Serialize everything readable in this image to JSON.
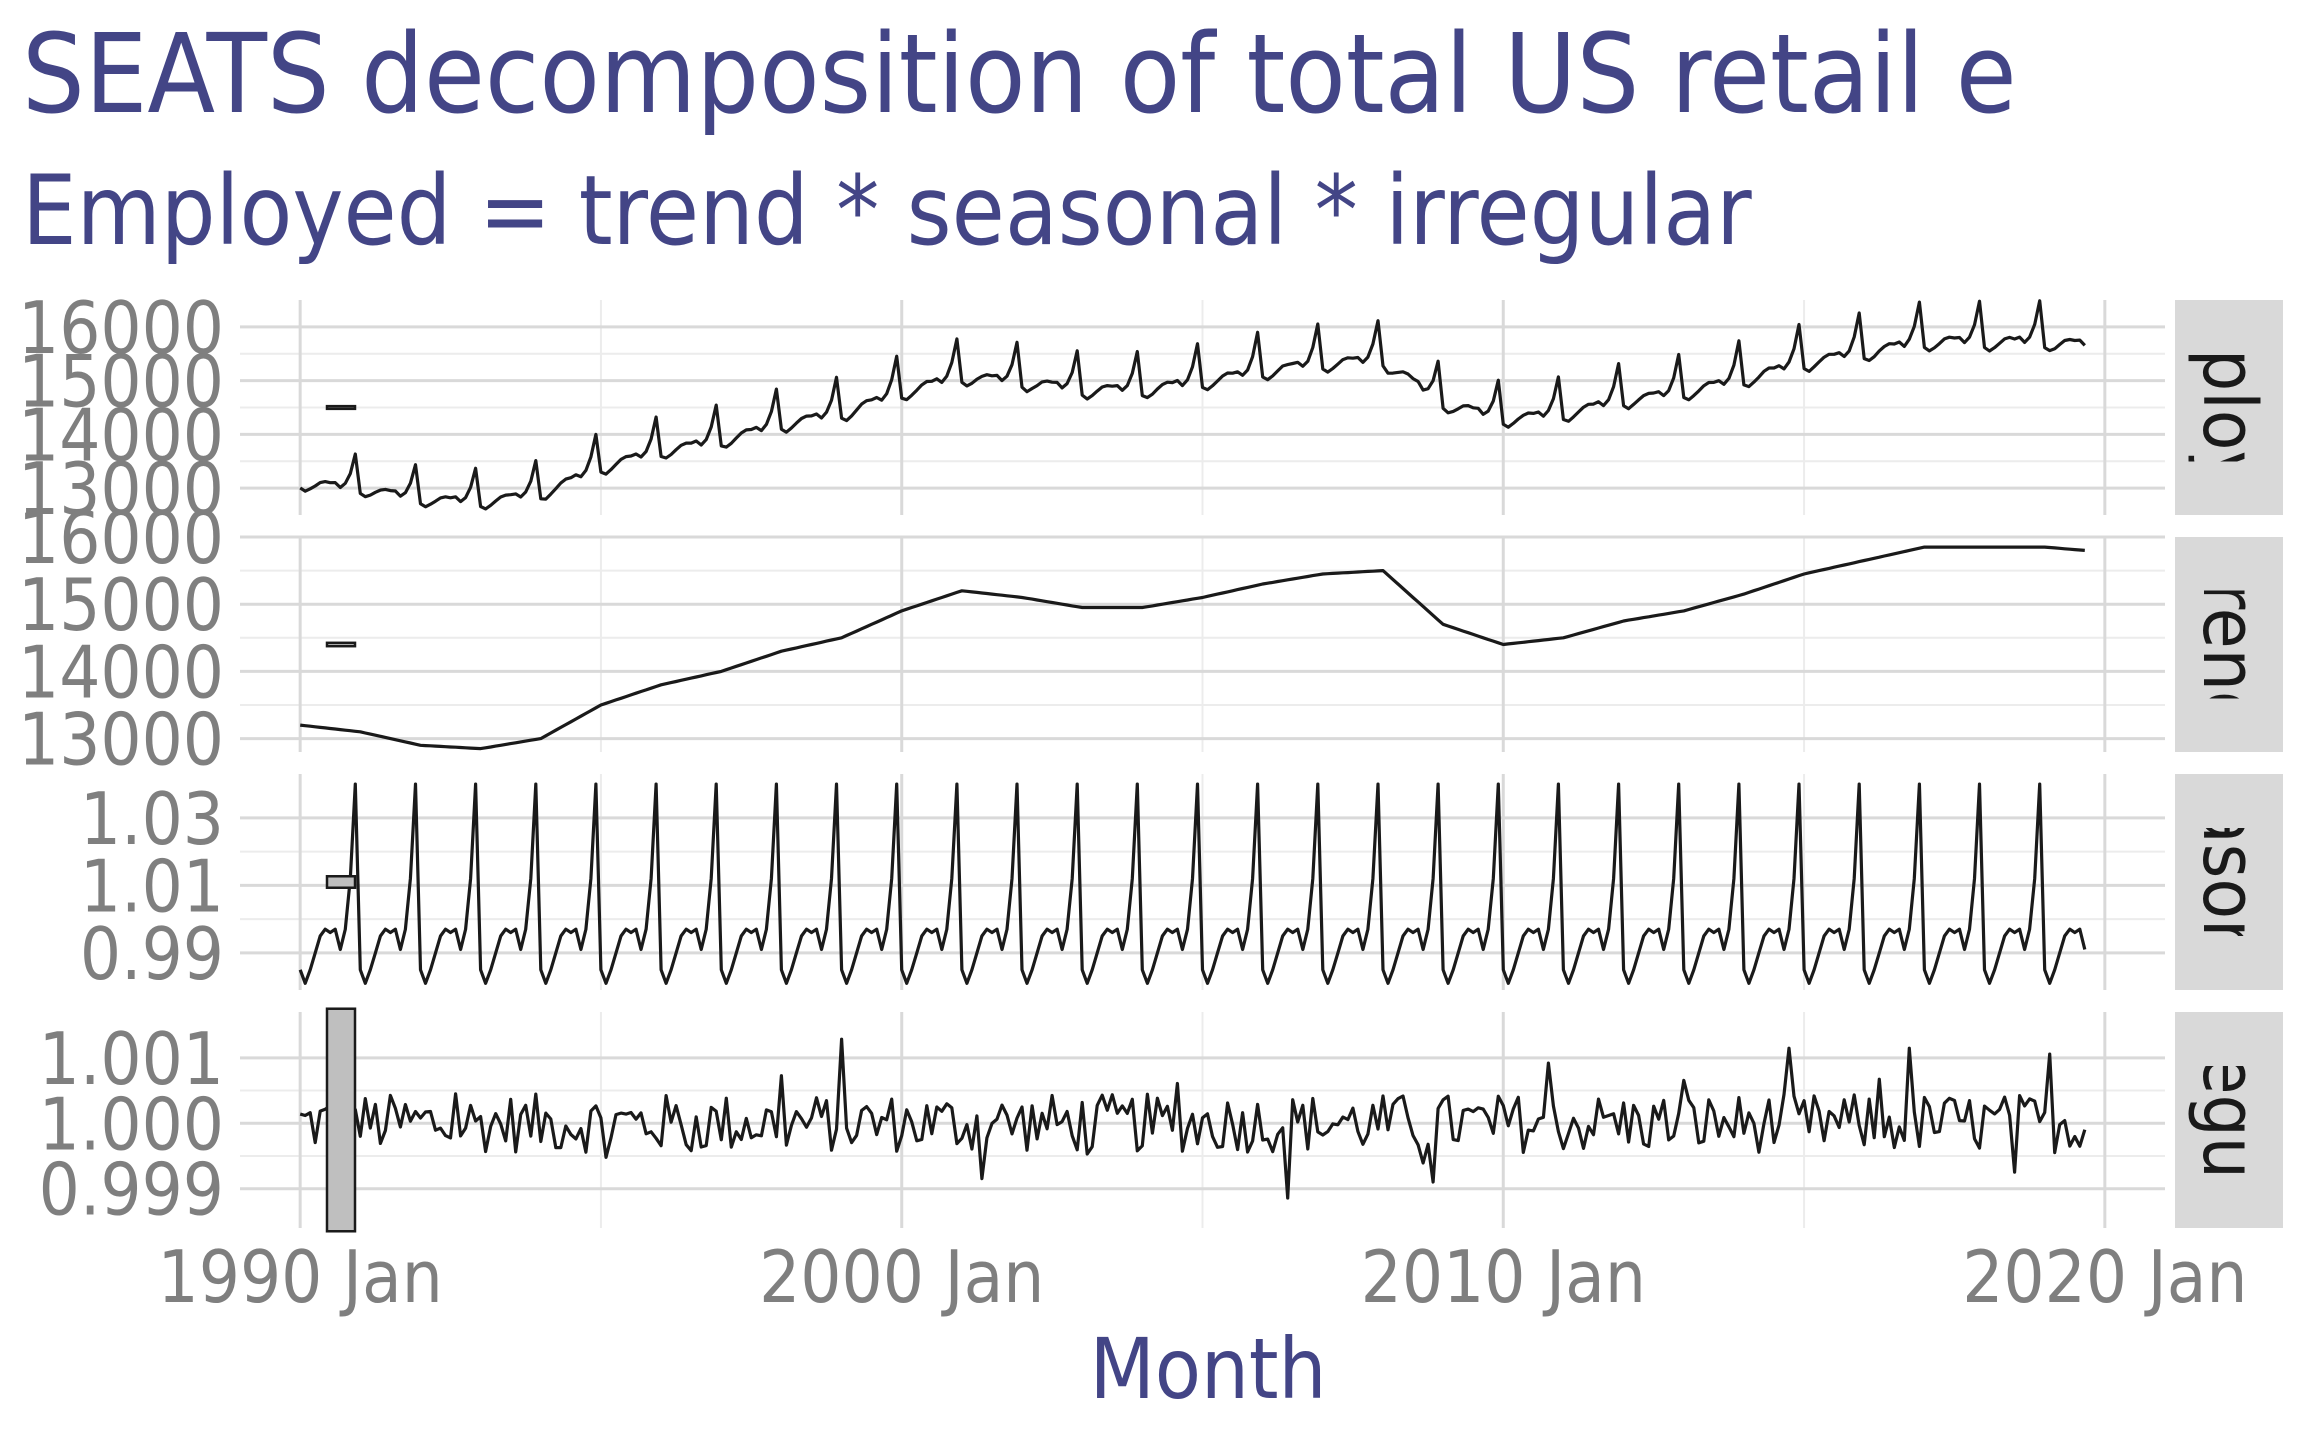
{
  "header": {
    "title": "SEATS decomposition of total US retail e",
    "subtitle": "Employed = trend * seasonal * irregular"
  },
  "colors": {
    "title": "#434586",
    "axis_text": "#7f7f7f",
    "line": "#1a1a1a",
    "grid_major": "#d9d9d9",
    "grid_minor": "#ececec",
    "strip_bg": "#d9d9d9",
    "scale_bar": "#bfbfbf"
  },
  "chart_data": {
    "type": "line",
    "xlabel": "Month",
    "x_range": [
      "1990-01",
      "2019-09"
    ],
    "x_ticks": [
      "1990 Jan",
      "2000 Jan",
      "2010 Jan",
      "2020 Jan"
    ],
    "grid": true,
    "panels": [
      {
        "strip": "mploye",
        "ylim": [
          12500,
          16500
        ],
        "yticks": [
          "13000",
          "14000",
          "15000",
          "16000"
        ],
        "series": [
          {
            "name": "",
            "x": [
              "1990-01",
              "1991-01",
              "1992-01",
              "1993-01",
              "1994-01",
              "1995-01",
              "1996-01",
              "1997-01",
              "1998-01",
              "1999-01",
              "2000-01",
              "2001-01",
              "2002-01",
              "2003-01",
              "2004-01",
              "2005-01",
              "2006-01",
              "2007-01",
              "2008-01",
              "2009-01",
              "2010-01",
              "2011-01",
              "2012-01",
              "2013-01",
              "2014-01",
              "2015-01",
              "2016-01",
              "2017-01",
              "2018-01",
              "2019-01",
              "2019-09"
            ],
            "values": [
              13100,
              12900,
              12700,
              12750,
              13000,
              13600,
              13800,
              14100,
              14400,
              14700,
              14900,
              15100,
              14900,
              14850,
              15000,
              15100,
              15300,
              15400,
              15200,
              14600,
              14400,
              14550,
              14700,
              14950,
              15200,
              15400,
              15600,
              15750,
              15800,
              15800,
              15700
            ]
          }
        ]
      },
      {
        "strip": "trend",
        "ylim": [
          12800,
          16000
        ],
        "yticks": [
          "13000",
          "14000",
          "15000",
          "16000"
        ],
        "series": [
          {
            "name": "",
            "x": [
              "1990-01",
              "1991-01",
              "1992-01",
              "1993-01",
              "1994-01",
              "1995-01",
              "1996-01",
              "1997-01",
              "1998-01",
              "1999-01",
              "2000-01",
              "2001-01",
              "2002-01",
              "2003-01",
              "2004-01",
              "2005-01",
              "2006-01",
              "2007-01",
              "2008-01",
              "2009-01",
              "2010-01",
              "2011-01",
              "2012-01",
              "2013-01",
              "2014-01",
              "2015-01",
              "2016-01",
              "2017-01",
              "2018-01",
              "2019-01",
              "2019-09"
            ],
            "values": [
              13200,
              13100,
              12900,
              12850,
              13000,
              13500,
              13800,
              14000,
              14300,
              14500,
              14900,
              15200,
              15100,
              14950,
              14950,
              15100,
              15300,
              15450,
              15500,
              14700,
              14400,
              14500,
              14750,
              14900,
              15150,
              15450,
              15650,
              15850,
              15850,
              15850,
              15800
            ]
          }
        ]
      },
      {
        "strip": "easona",
        "ylim": [
          0.979,
          1.043
        ],
        "yticks": [
          "0.99",
          "1.01",
          "1.03"
        ],
        "series": [
          {
            "name": "",
            "x": [
              "Jan",
              "Feb",
              "Mar",
              "Apr",
              "May",
              "Jun",
              "Jul",
              "Aug",
              "Sep",
              "Oct",
              "Nov",
              "Dec"
            ],
            "values": [
              0.985,
              0.981,
              0.985,
              0.99,
              0.995,
              0.997,
              0.996,
              0.997,
              0.991,
              0.997,
              1.012,
              1.04
            ]
          }
        ]
      },
      {
        "strip": "rregula",
        "ylim": [
          0.9984,
          1.0017
        ],
        "yticks": [
          "0.999",
          "1.000",
          "1.001"
        ],
        "series": [
          {
            "name": "",
            "x": [
              "1990-01",
              "2019-09"
            ],
            "values": [
              1.0,
              1.0
            ]
          }
        ]
      }
    ]
  }
}
